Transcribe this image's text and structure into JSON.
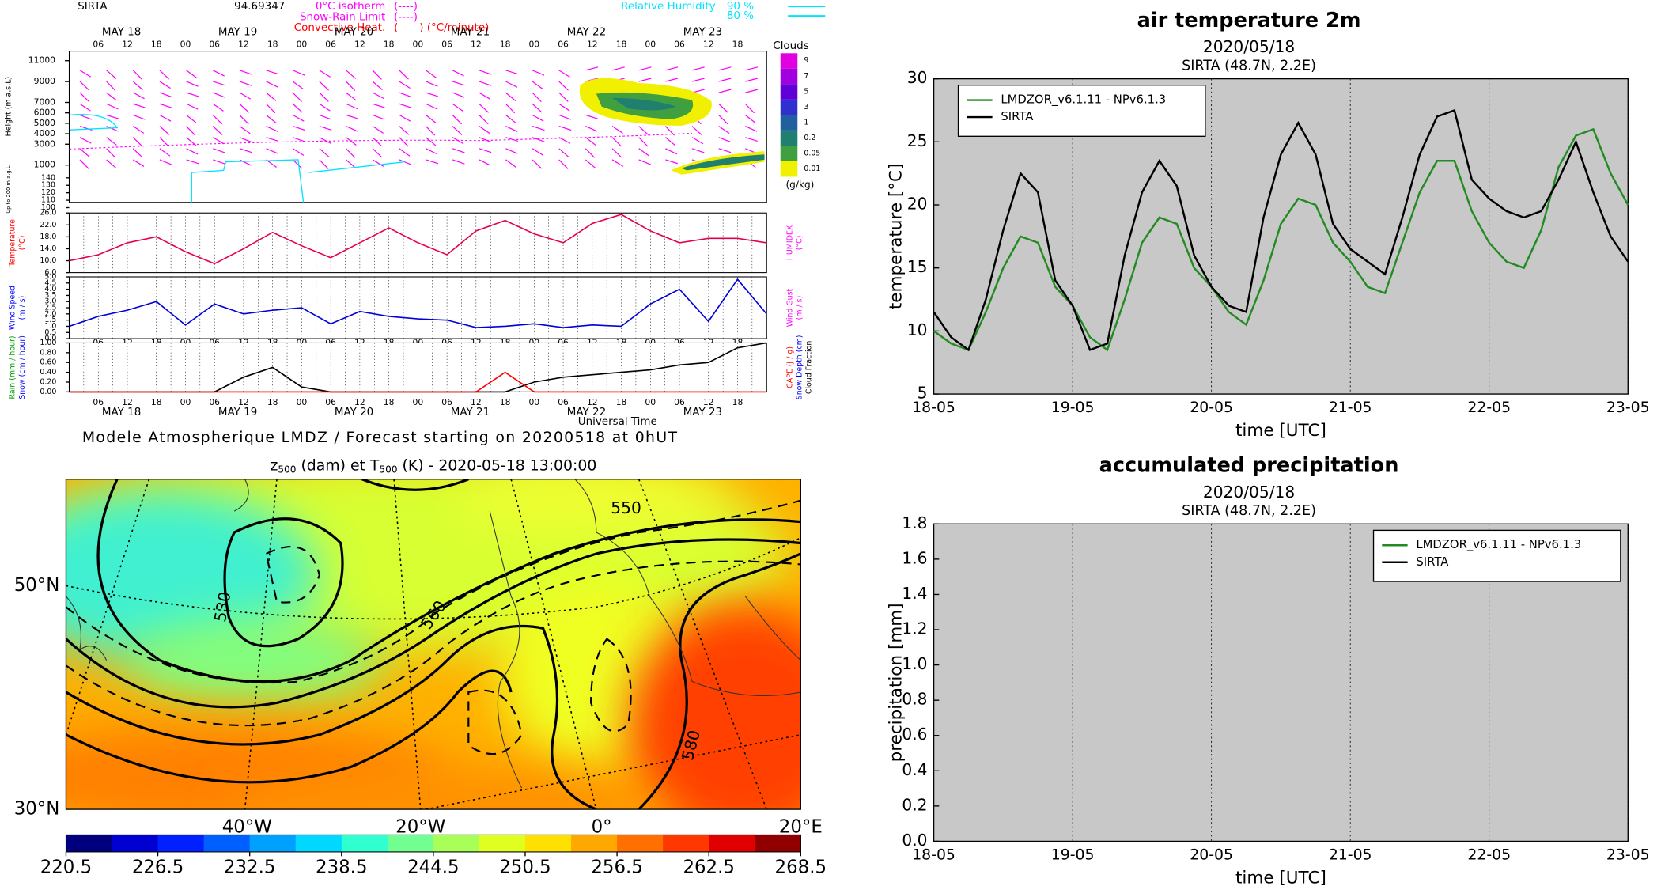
{
  "chart_data": [
    {
      "type": "meteogram",
      "station": "SIRTA",
      "header_value": "94.69347",
      "legend": [
        {
          "label": "0°C isotherm",
          "style": "(----)",
          "color": "#ff00ff"
        },
        {
          "label": "Snow-Rain Limit",
          "style": "(----)",
          "color": "#ff00ff"
        },
        {
          "label": "Convective Heat.",
          "style": "(——)  (°C/minute)",
          "color": "#ff0000"
        }
      ],
      "humidity_legend": {
        "label": "Relative Humidity",
        "levels": [
          "90 %",
          "80 %"
        ],
        "color": "#00e5ff"
      },
      "day_labels": [
        "MAY 18",
        "MAY 19",
        "MAY 20",
        "MAY 21",
        "MAY 22",
        "MAY 23"
      ],
      "hour_labels": [
        "06",
        "12",
        "18",
        "00"
      ],
      "xlim": [
        0,
        6
      ],
      "x": [
        0,
        0.25,
        0.5,
        0.75,
        1,
        1.25,
        1.5,
        1.75,
        2,
        2.25,
        2.5,
        2.75,
        3,
        3.25,
        3.5,
        3.75,
        4,
        4.25,
        4.5,
        4.75,
        5,
        5.25,
        5.5,
        5.75,
        6
      ],
      "height_label": "Height (m a.s.L)",
      "height_ticks": [
        11000,
        9000,
        7000,
        6000,
        5000,
        4000,
        3000,
        1000
      ],
      "low_height_label": "Up to 200 m a.g.L",
      "low_height_ticks": [
        140,
        130,
        120,
        110,
        100
      ],
      "clouds": {
        "title": "Clouds",
        "unit": "(g/kg)",
        "levels": [
          9,
          7,
          5,
          3,
          1,
          0.2,
          0.05,
          0.01
        ],
        "colors": [
          "#e000e0",
          "#a000e0",
          "#6000d8",
          "#3030d0",
          "#2060a0",
          "#208070",
          "#40a040",
          "#f0f000"
        ]
      },
      "panels": [
        {
          "left_labels": [
            {
              "text": "Temperature",
              "color": "#ff0000"
            },
            {
              "text": "(°C)",
              "color": "#ff0000"
            }
          ],
          "right_labels": [
            {
              "text": "HUMIDEX",
              "color": "#ff00ff"
            },
            {
              "text": "(°C)",
              "color": "#ff00ff"
            }
          ],
          "ylim": [
            6,
            26
          ],
          "yticks": [
            {
              "value": 26,
              "label": "26.0"
            },
            {
              "value": 22,
              "label": "22.0"
            },
            {
              "value": 18,
              "label": "18.0"
            },
            {
              "value": 14,
              "label": "14.0"
            },
            {
              "value": 10,
              "label": "10.0"
            },
            {
              "value": 6,
              "label": "6.0"
            }
          ],
          "series": [
            {
              "color": "#e6004c",
              "values": [
                10,
                12,
                16,
                18,
                13,
                9,
                14,
                19.5,
                15,
                11,
                16,
                21,
                16,
                12,
                20,
                23.5,
                19,
                16,
                22.5,
                25.5,
                20,
                16,
                17.5,
                17.5,
                16
              ]
            }
          ]
        },
        {
          "left_labels": [
            {
              "text": "Wind Speed",
              "color": "#0000ff"
            },
            {
              "text": "(m / s)",
              "color": "#0000ff"
            }
          ],
          "right_labels": [
            {
              "text": "Wind Gust",
              "color": "#ff00ff"
            },
            {
              "text": "(m / s)",
              "color": "#ff00ff"
            }
          ],
          "ylim": [
            0,
            5
          ],
          "yticks": [
            {
              "value": 5,
              "label": "5.0"
            },
            4.5,
            {
              "value": 4,
              "label": "4.0"
            },
            3.5,
            {
              "value": 3,
              "label": "3.0"
            },
            2.5,
            {
              "value": 2,
              "label": "2.0"
            },
            1.5,
            {
              "value": 1,
              "label": "1.0"
            },
            0.5,
            {
              "value": 0,
              "label": "0.0"
            }
          ],
          "series": [
            {
              "color": "#0000dd",
              "values": [
                1.0,
                1.8,
                2.3,
                3.0,
                1.1,
                2.8,
                2.0,
                2.3,
                2.5,
                1.2,
                2.2,
                1.8,
                1.6,
                1.5,
                0.9,
                1.0,
                1.2,
                0.9,
                1.1,
                1.0,
                2.8,
                4.0,
                1.4,
                4.8,
                2.0
              ]
            }
          ]
        },
        {
          "left_labels": [
            {
              "text": "Rain (mm / hour)",
              "color": "#00a000"
            },
            {
              "text": "Snow (cm / hour)",
              "color": "#0000ff"
            }
          ],
          "right_labels": [
            {
              "text": "CAPE (J / g)",
              "color": "#ff0000"
            },
            {
              "text": "Snow Depth (cm)",
              "color": "#0000ff"
            },
            {
              "text": "Cloud Fraction",
              "color": "#000000"
            }
          ],
          "ylim": [
            0,
            1
          ],
          "yticks": [
            {
              "value": 1,
              "label": "1.00"
            },
            {
              "value": 0.8,
              "label": "0.80"
            },
            {
              "value": 0.6,
              "label": "0.60"
            },
            {
              "value": 0.4,
              "label": "0.40"
            },
            {
              "value": 0.2,
              "label": "0.20"
            },
            {
              "value": 0,
              "label": "0.00"
            }
          ],
          "series": [
            {
              "color": "#000000",
              "values": [
                0,
                0,
                0,
                0,
                0,
                0,
                0.3,
                0.5,
                0.1,
                0,
                0,
                0,
                0,
                0,
                0,
                0,
                0.2,
                0.3,
                0.35,
                0.4,
                0.45,
                0.55,
                0.6,
                0.9,
                1.0
              ]
            },
            {
              "color": "#ff0000",
              "values": [
                0,
                0,
                0,
                0,
                0,
                0,
                0,
                0,
                0,
                0,
                0,
                0,
                0,
                0,
                0,
                0.4,
                0,
                0,
                0,
                0,
                0,
                0,
                0,
                0,
                0
              ]
            }
          ]
        }
      ],
      "xlabel": "Universal Time",
      "footer": "Modele Atmospherique LMDZ / Forecast starting on 20200518 at 0hUT"
    },
    {
      "type": "map",
      "title_parts": [
        "z",
        "500",
        " (dam) et T",
        "500",
        " (K) - 2020-05-18 13:00:00"
      ],
      "lat_labels": [
        "50°N",
        "30°N"
      ],
      "lon_labels": [
        "40°W",
        "20°W",
        "0°",
        "20°E"
      ],
      "contour_labels": [
        530,
        550,
        560,
        580
      ],
      "clim": [
        220.5,
        268.5
      ],
      "colorbar_ticks": [
        220.5,
        226.5,
        232.5,
        238.5,
        244.5,
        250.5,
        256.5,
        262.5,
        268.5
      ],
      "colors": [
        "#00007f",
        "#0000d0",
        "#0020ff",
        "#0060ff",
        "#00a0ff",
        "#00d8ff",
        "#30ffd0",
        "#70ff90",
        "#a8ff58",
        "#e0ff20",
        "#ffe000",
        "#ffa800",
        "#ff7000",
        "#ff3800",
        "#e00000",
        "#900000"
      ]
    },
    {
      "type": "line",
      "title": "air temperature 2m",
      "subtitle": "2020/05/18",
      "location": "SIRTA (48.7N, 2.2E)",
      "xlabel": "time [UTC]",
      "ylabel": "temperature [°C]",
      "legend": "upper left",
      "grid": "x",
      "background": "#c8c8c8",
      "xlim": [
        0,
        5
      ],
      "xticks": [
        {
          "value": 0,
          "label": "18-05"
        },
        {
          "value": 1,
          "label": "19-05"
        },
        {
          "value": 2,
          "label": "20-05"
        },
        {
          "value": 3,
          "label": "21-05"
        },
        {
          "value": 4,
          "label": "22-05"
        },
        {
          "value": 5,
          "label": "23-05"
        }
      ],
      "ylim": [
        5,
        30
      ],
      "yticks": [
        5,
        10,
        15,
        20,
        25,
        30
      ],
      "x": [
        0,
        0.125,
        0.25,
        0.375,
        0.5,
        0.625,
        0.75,
        0.875,
        1,
        1.125,
        1.25,
        1.375,
        1.5,
        1.625,
        1.75,
        1.875,
        2,
        2.125,
        2.25,
        2.375,
        2.5,
        2.625,
        2.75,
        2.875,
        3,
        3.125,
        3.25,
        3.375,
        3.5,
        3.625,
        3.75,
        3.875,
        4,
        4.125,
        4.25,
        4.375,
        4.5,
        4.625,
        4.75,
        4.875,
        5
      ],
      "series": [
        {
          "name": "LMDZOR_v6.1.11 - NPv6.1.3",
          "color": "#228b22",
          "values": [
            10,
            9,
            8.5,
            11.5,
            15,
            17.5,
            17,
            13.5,
            12,
            9.5,
            8.5,
            12.5,
            17,
            19,
            18.5,
            15,
            13.5,
            11.5,
            10.5,
            14,
            18.5,
            20.5,
            20,
            17,
            15.5,
            13.5,
            13,
            17,
            21,
            23.5,
            23.5,
            19.5,
            17,
            15.5,
            15,
            18,
            23,
            25.5,
            26,
            22.5,
            20
          ]
        },
        {
          "name": "SIRTA",
          "color": "#000000",
          "values": [
            11.5,
            9.5,
            8.5,
            12.5,
            18,
            22.5,
            21,
            14,
            12,
            8.5,
            9,
            16,
            21,
            23.5,
            21.5,
            16,
            13.5,
            12,
            11.5,
            19,
            24,
            26.5,
            24,
            18.5,
            16.5,
            15.5,
            14.5,
            19,
            24,
            27,
            27.5,
            22,
            20.5,
            19.5,
            19,
            19.5,
            22,
            25,
            21,
            17.5,
            15.5
          ]
        }
      ]
    },
    {
      "type": "line",
      "title": "accumulated precipitation",
      "subtitle": "2020/05/18",
      "location": "SIRTA (48.7N, 2.2E)",
      "xlabel": "time [UTC]",
      "ylabel": "precipitation [mm]",
      "legend": "upper right",
      "grid": "x",
      "background": "#c8c8c8",
      "xlim": [
        0,
        5
      ],
      "xticks": [
        {
          "value": 0,
          "label": "18-05"
        },
        {
          "value": 1,
          "label": "19-05"
        },
        {
          "value": 2,
          "label": "20-05"
        },
        {
          "value": 3,
          "label": "21-05"
        },
        {
          "value": 4,
          "label": "22-05"
        },
        {
          "value": 5,
          "label": "23-05"
        }
      ],
      "ylim": [
        0,
        1.8
      ],
      "yticks": [
        {
          "value": 0,
          "label": "0.0"
        },
        0.2,
        0.4,
        0.6,
        0.8,
        {
          "value": 1,
          "label": "1.0"
        },
        1.2,
        1.4,
        1.6,
        1.8
      ],
      "series": [
        {
          "name": "LMDZOR_v6.1.11 - NPv6.1.3",
          "color": "#228b22",
          "values": []
        },
        {
          "name": "SIRTA",
          "color": "#000000",
          "values": []
        }
      ]
    }
  ]
}
